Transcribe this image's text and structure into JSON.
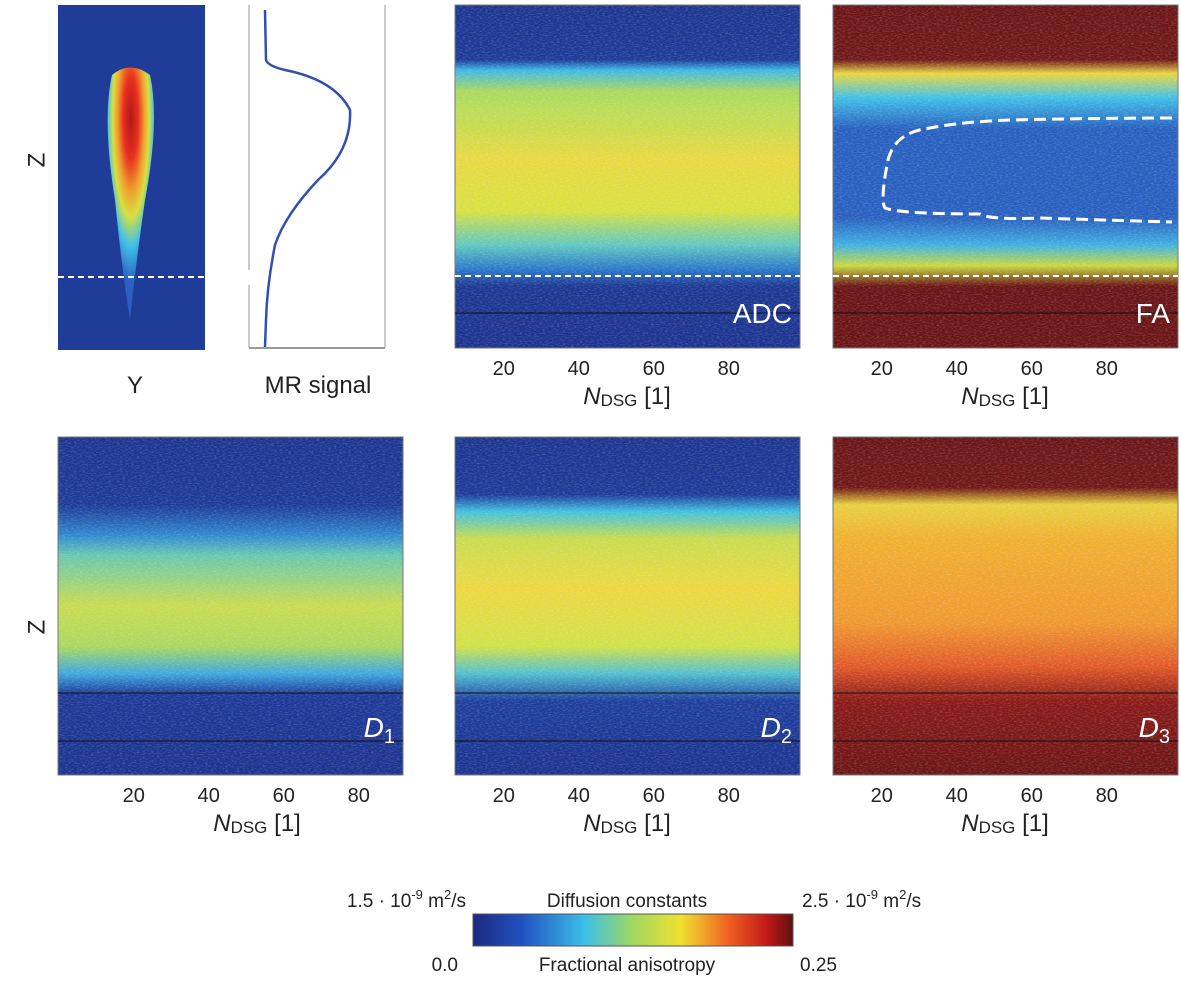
{
  "left_axis_label": "Z",
  "x_axis": {
    "label": "N",
    "label_sub": "DSG",
    "unit": "[1]",
    "ticks": [
      20,
      40,
      60,
      80
    ],
    "range": [
      7,
      99
    ]
  },
  "top_row": {
    "image_label": "Y",
    "profile_label": "MR signal",
    "maps": [
      {
        "label": "ADC"
      },
      {
        "label": "FA"
      }
    ]
  },
  "bottom_row": {
    "maps": [
      {
        "label": "D",
        "sub": "1"
      },
      {
        "label": "D",
        "sub": "2"
      },
      {
        "label": "D",
        "sub": "3"
      }
    ]
  },
  "colorbar": {
    "top_title": "Diffusion constants",
    "bottom_title": "Fractional anisotropy",
    "top_min": {
      "base": "1.5 · 10",
      "exp": "-9",
      "unit": " m",
      "unit_exp": "2",
      "unit_tail": "/s"
    },
    "top_max": {
      "base": "2.5 · 10",
      "exp": "-9",
      "unit": " m",
      "unit_exp": "2",
      "unit_tail": "/s"
    },
    "bottom_min": "0.0",
    "bottom_max": "0.25"
  }
}
